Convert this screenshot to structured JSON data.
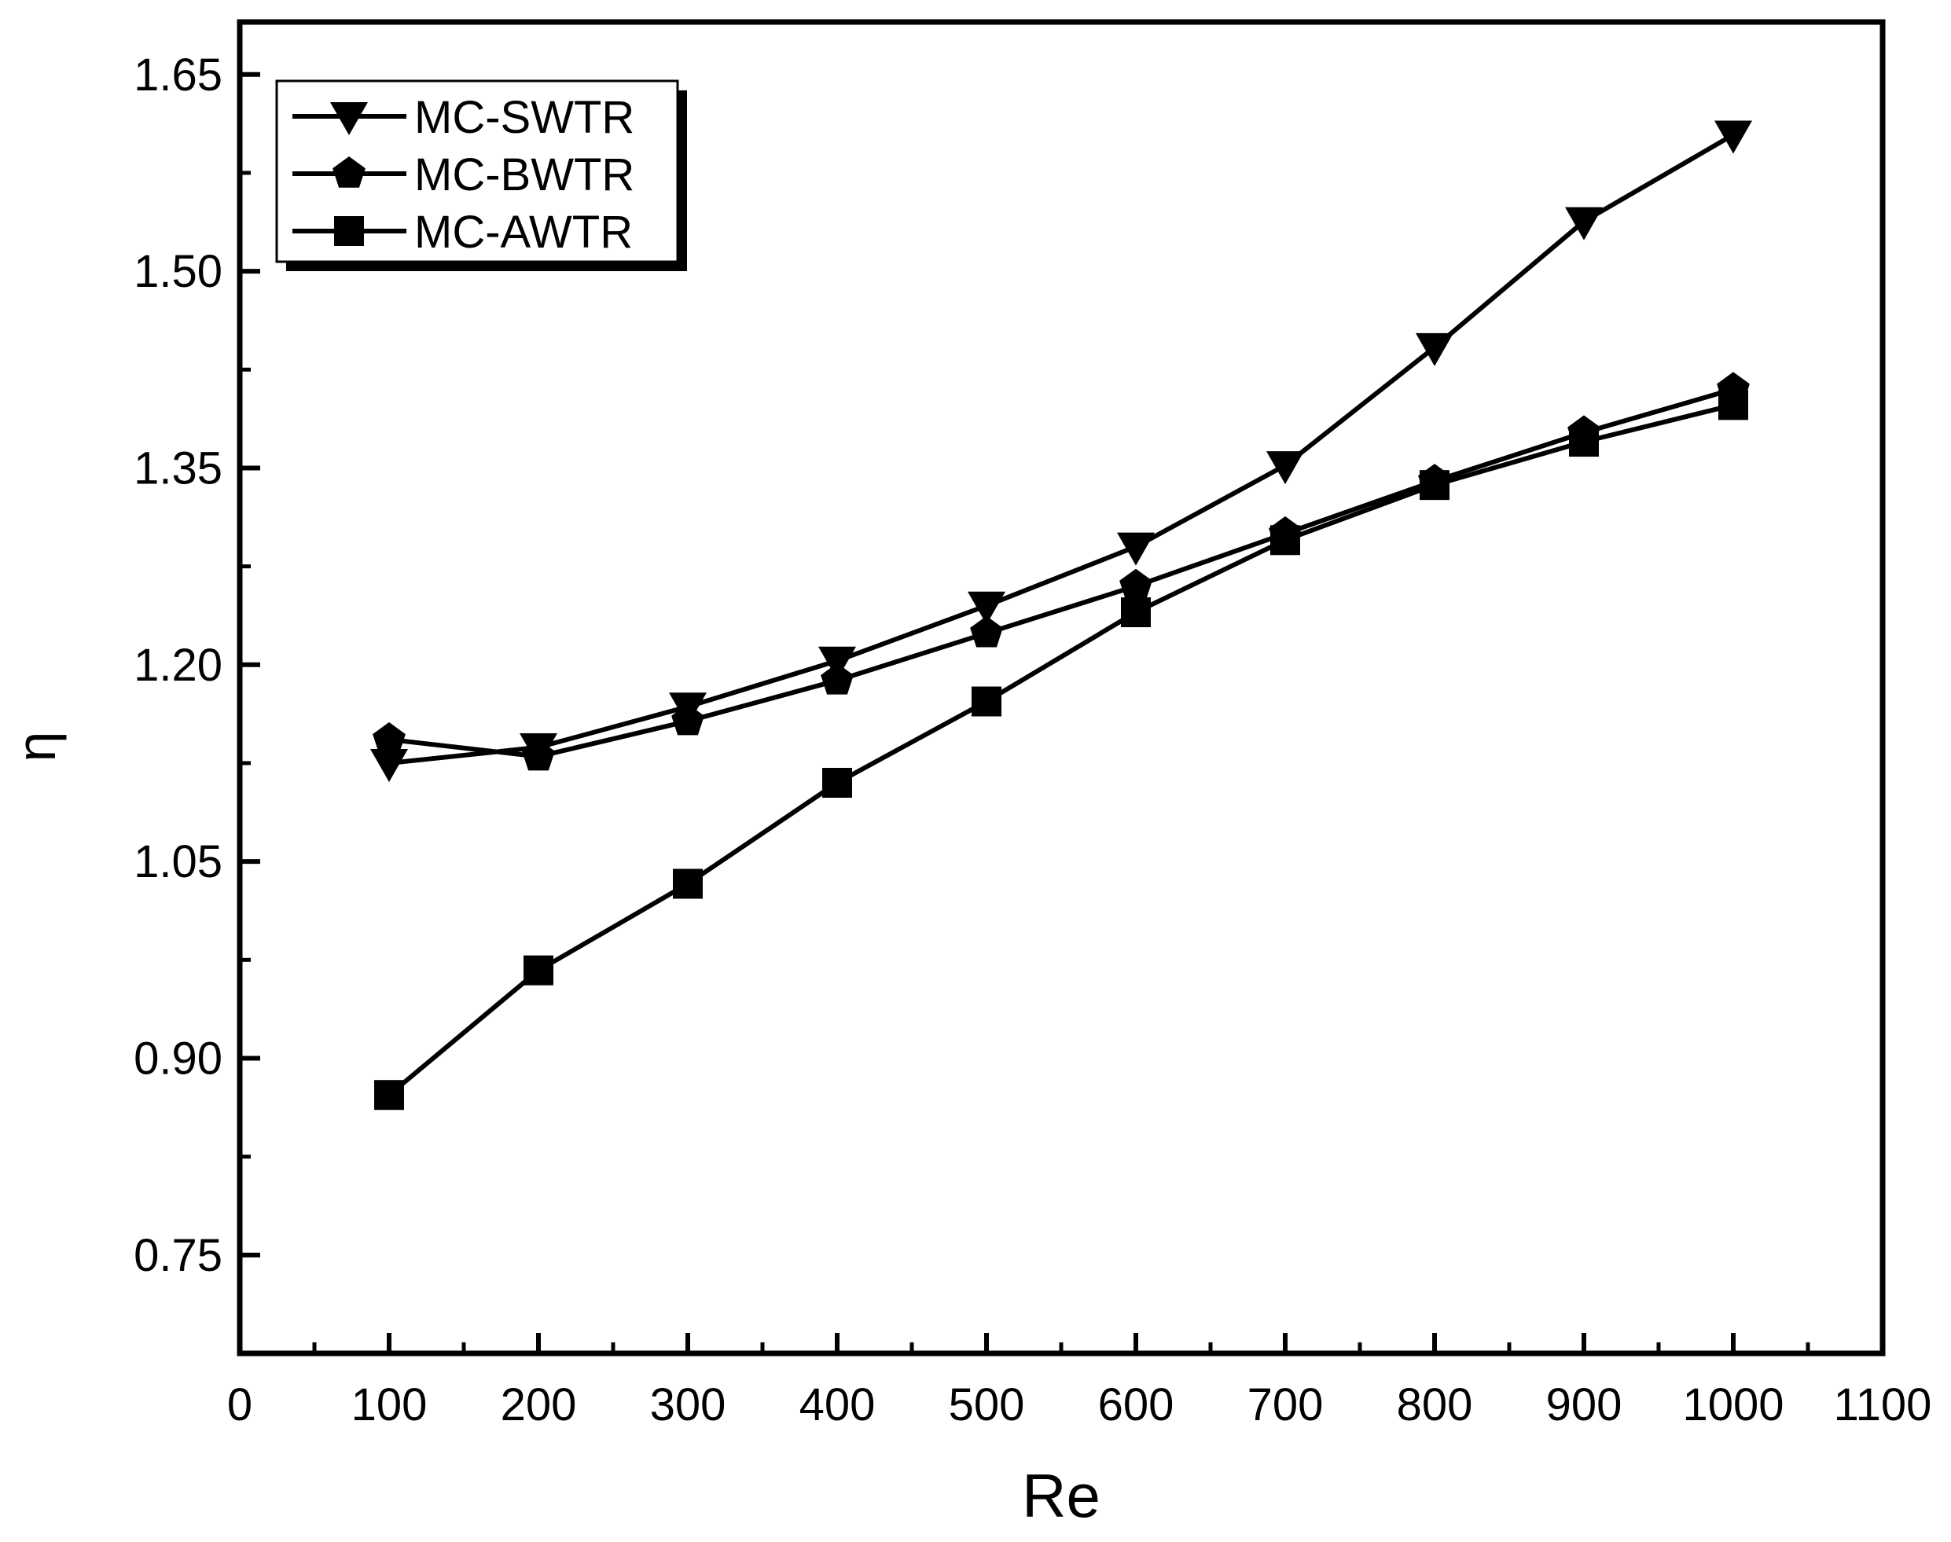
{
  "chart_data": {
    "type": "line",
    "xlabel": "Re",
    "ylabel": "η",
    "xlim": [
      0,
      1100
    ],
    "ylim": [
      0.675,
      1.69
    ],
    "x_ticks": [
      0,
      100,
      200,
      300,
      400,
      500,
      600,
      700,
      800,
      900,
      1000,
      1100
    ],
    "x_tick_labels": [
      "0",
      "100",
      "200",
      "300",
      "400",
      "500",
      "600",
      "700",
      "800",
      "900",
      "1000",
      "1100"
    ],
    "y_ticks": [
      0.75,
      0.9,
      1.05,
      1.2,
      1.35,
      1.5,
      1.65
    ],
    "y_tick_labels": [
      "0.75",
      "0.90",
      "1.05",
      "1.20",
      "1.35",
      "1.50",
      "1.65"
    ],
    "y_minor_ticks": [
      0.825,
      0.975,
      1.125,
      1.275,
      1.425,
      1.575
    ],
    "x_minor_ticks": [
      50,
      150,
      250,
      350,
      450,
      550,
      650,
      750,
      850,
      950,
      1050
    ],
    "grid": false,
    "legend_position": "top-left",
    "x": [
      100,
      200,
      300,
      400,
      500,
      600,
      700,
      800,
      900,
      1000
    ],
    "series": [
      {
        "name": "MC-SWTR",
        "marker": "triangle-down",
        "values": [
          1.125,
          1.137,
          1.168,
          1.203,
          1.245,
          1.29,
          1.352,
          1.442,
          1.538,
          1.604
        ]
      },
      {
        "name": "MC-BWTR",
        "marker": "pentagon",
        "values": [
          1.143,
          1.13,
          1.157,
          1.188,
          1.224,
          1.26,
          1.3,
          1.34,
          1.377,
          1.41
        ]
      },
      {
        "name": "MC-AWTR",
        "marker": "square",
        "values": [
          0.872,
          0.967,
          1.033,
          1.11,
          1.172,
          1.24,
          1.295,
          1.337,
          1.37,
          1.398
        ]
      }
    ]
  }
}
